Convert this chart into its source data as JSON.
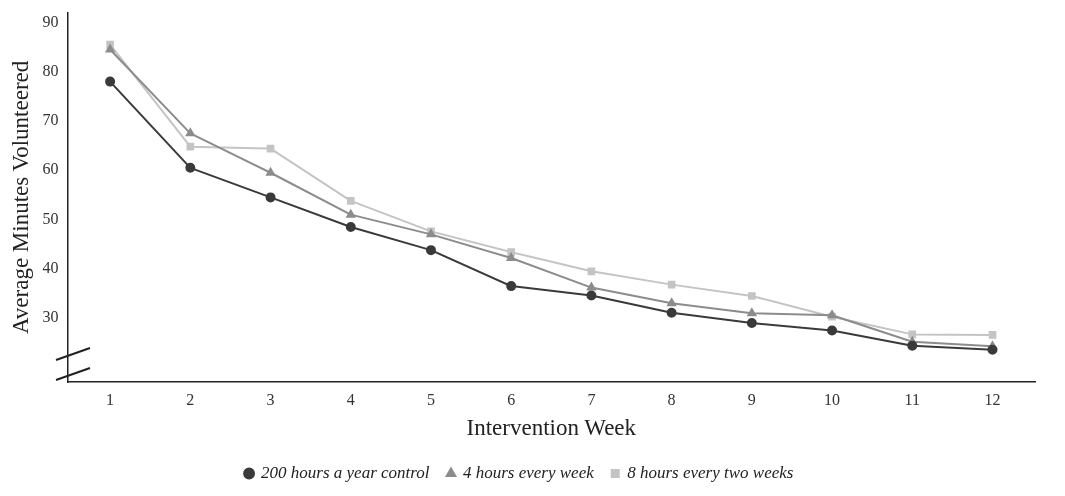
{
  "chart_data": {
    "type": "line",
    "xlabel": "Intervention Week",
    "ylabel": "Average Minutes Volunteered",
    "x": [
      1,
      2,
      3,
      4,
      5,
      6,
      7,
      8,
      9,
      10,
      11,
      12
    ],
    "xlim": [
      0.47,
      12.53
    ],
    "xticks": [
      1,
      2,
      3,
      4,
      5,
      6,
      7,
      8,
      9,
      10,
      11,
      12
    ],
    "ylim": [
      17,
      92
    ],
    "yticks": [
      30,
      40,
      50,
      60,
      70,
      80,
      90
    ],
    "grid": false,
    "legend": "bottom",
    "series": [
      {
        "name": "200 hours a year control",
        "color": "#3a3a3a",
        "marker": "circle",
        "values": [
          78,
          60.5,
          54.5,
          48.5,
          43.8,
          36.5,
          34.6,
          31.1,
          29,
          27.5,
          24.4,
          23.6
        ]
      },
      {
        "name": "4 hours every week",
        "color": "#8c8c8c",
        "marker": "triangle",
        "values": [
          84.5,
          67.5,
          59.5,
          51,
          47,
          42.2,
          36.2,
          33,
          31,
          30.6,
          25.2,
          24.3
        ]
      },
      {
        "name": "8 hours every two weeks",
        "color": "#c4c4c4",
        "marker": "square",
        "values": [
          85.5,
          64.8,
          64.4,
          53.8,
          47.6,
          43.4,
          39.5,
          36.8,
          34.5,
          30.3,
          26.7,
          26.6
        ]
      }
    ]
  }
}
